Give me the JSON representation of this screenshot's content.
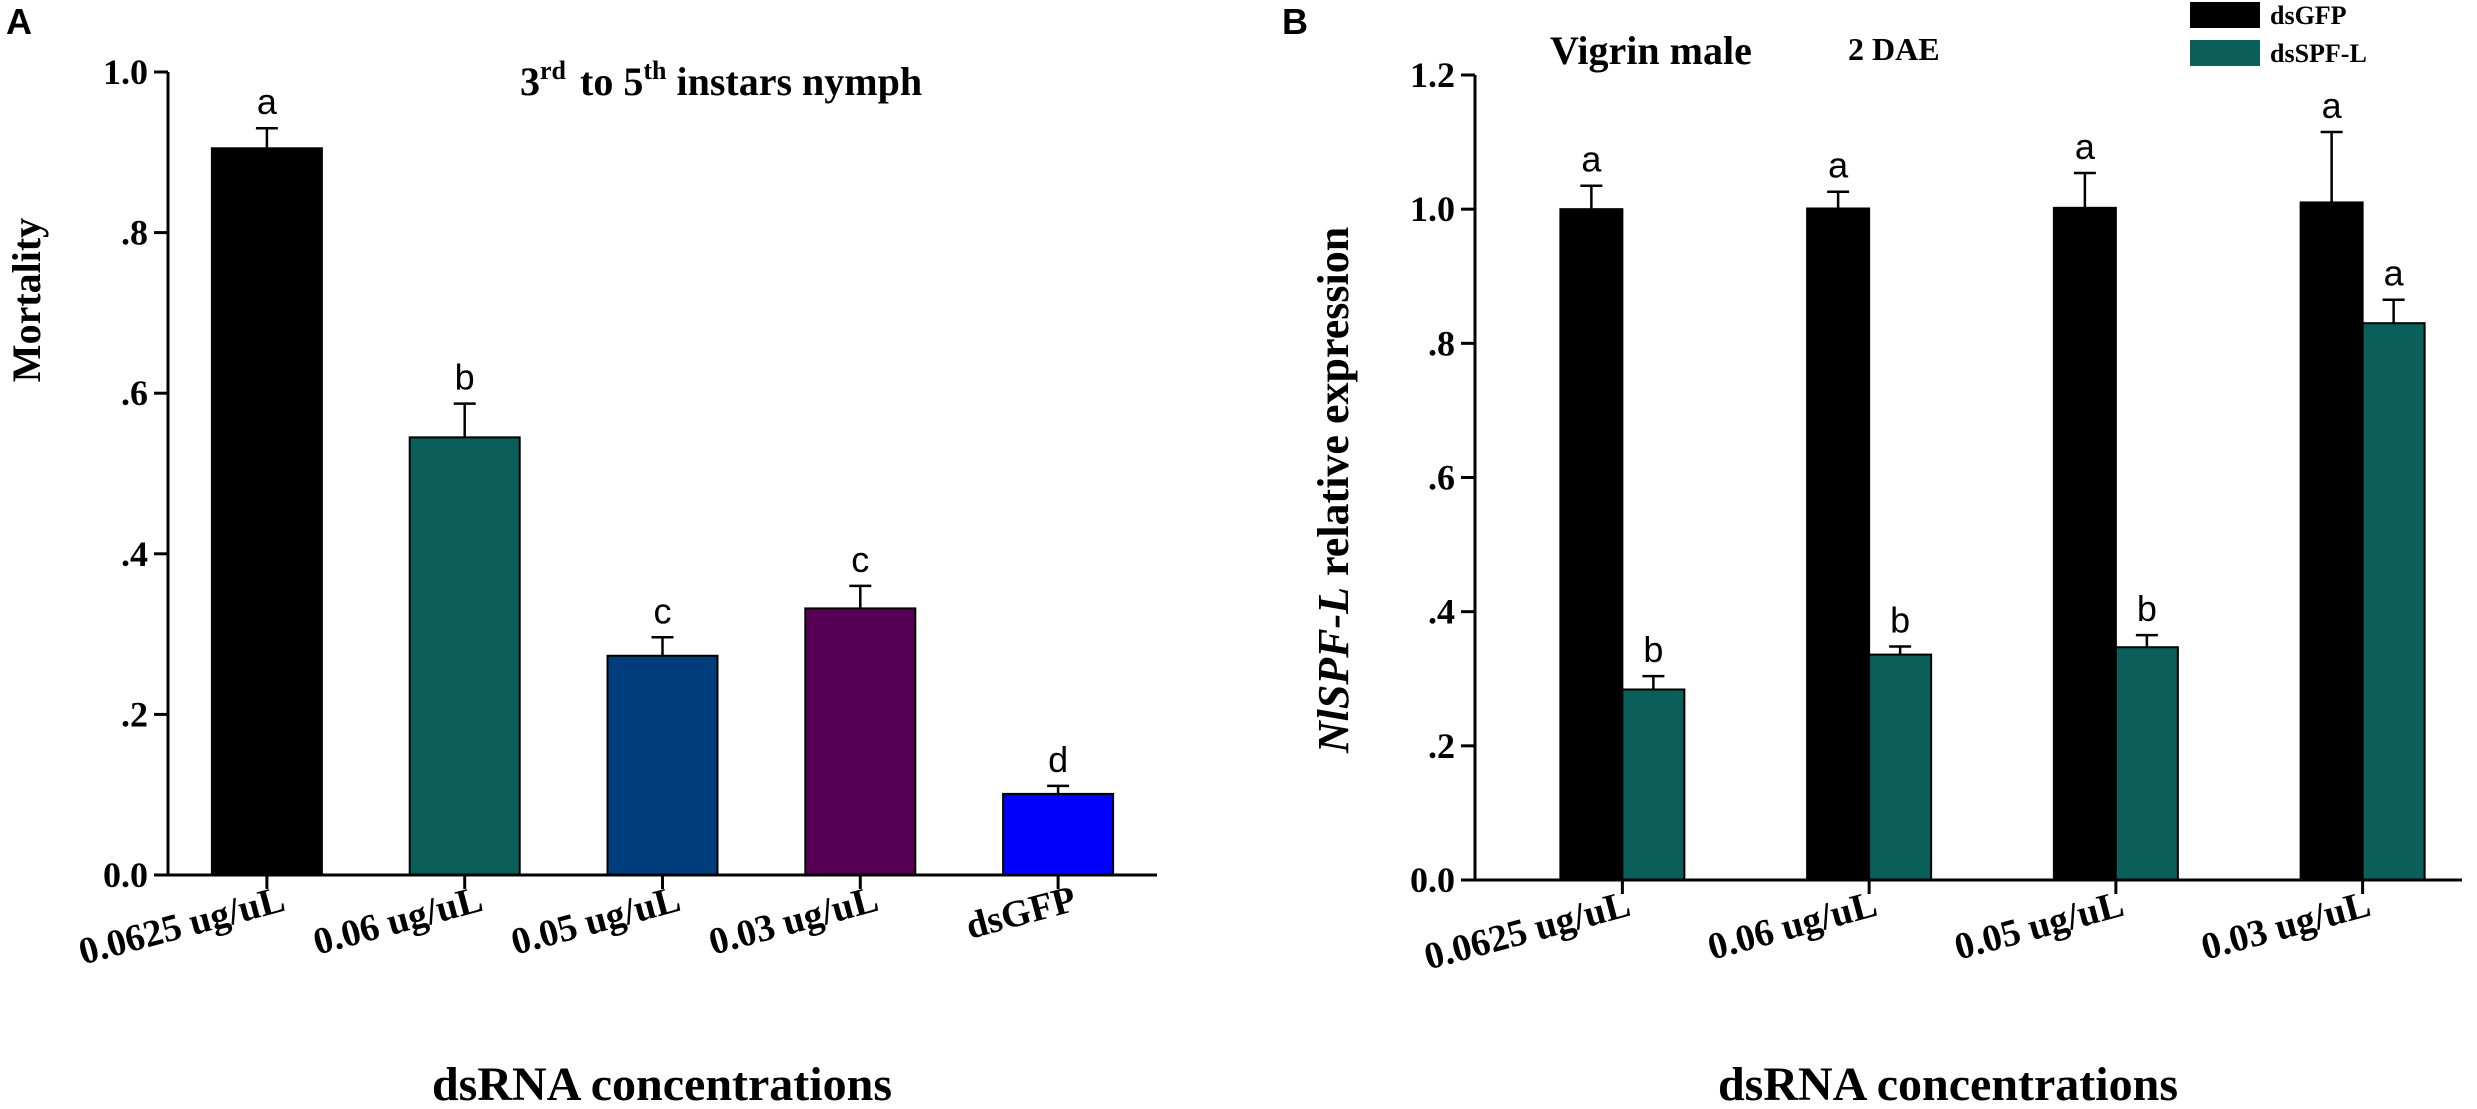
{
  "chart_data": [
    {
      "panel": "A",
      "type": "bar",
      "title_parts": [
        "3",
        "rd",
        "to 5",
        "th",
        "instars nymph"
      ],
      "ylabel": "Mortality",
      "xlabel": "dsRNA concentrations",
      "ylim": [
        0,
        1.0
      ],
      "yticks": [
        0,
        0.2,
        0.4,
        0.6,
        0.8,
        1.0
      ],
      "ytick_labels": [
        "0.0",
        ".2",
        ".4",
        ".6",
        ".8",
        "1.0"
      ],
      "categories": [
        "0.0625 ug/uL",
        "0.06 ug/uL",
        "0.05 ug/uL",
        "0.03 ug/uL",
        "dsGFP"
      ],
      "values": [
        0.905,
        0.545,
        0.273,
        0.332,
        0.101
      ],
      "errors": [
        0.025,
        0.042,
        0.023,
        0.028,
        0.01
      ],
      "labels": [
        "a",
        "b",
        "c",
        "c",
        "d"
      ],
      "colors": [
        "#000000",
        "#0a5f5b",
        "#003d7d",
        "#560056",
        "#0000fc"
      ]
    },
    {
      "panel": "B",
      "type": "bar",
      "title": "Vigrin male",
      "subtitle": "2 DAE",
      "ylabel_italic": "NlSPF-L",
      "ylabel_rest": " relative expression",
      "xlabel": "dsRNA concentrations",
      "ylim": [
        0,
        1.2
      ],
      "yticks": [
        0,
        0.2,
        0.4,
        0.6,
        0.8,
        1.0,
        1.2
      ],
      "ytick_labels": [
        "0.0",
        ".2",
        ".4",
        ".6",
        ".8",
        "1.0",
        "1.2"
      ],
      "categories": [
        "0.0625 ug/uL",
        "0.06 ug/uL",
        "0.05 ug/uL",
        "0.03 ug/uL"
      ],
      "series": [
        {
          "name": "dsGFP",
          "color": "#000000",
          "values": [
            1.0,
            1.001,
            1.002,
            1.01
          ],
          "errors": [
            0.035,
            0.025,
            0.052,
            0.105
          ],
          "labels": [
            "a",
            "a",
            "a",
            "a"
          ]
        },
        {
          "name": "dsSPF-L",
          "color": "#0a5f5b",
          "values": [
            0.284,
            0.336,
            0.347,
            0.83
          ],
          "errors": [
            0.02,
            0.012,
            0.018,
            0.035
          ],
          "labels": [
            "b",
            "b",
            "b",
            "a"
          ]
        }
      ],
      "legend_position": "top-right"
    }
  ]
}
